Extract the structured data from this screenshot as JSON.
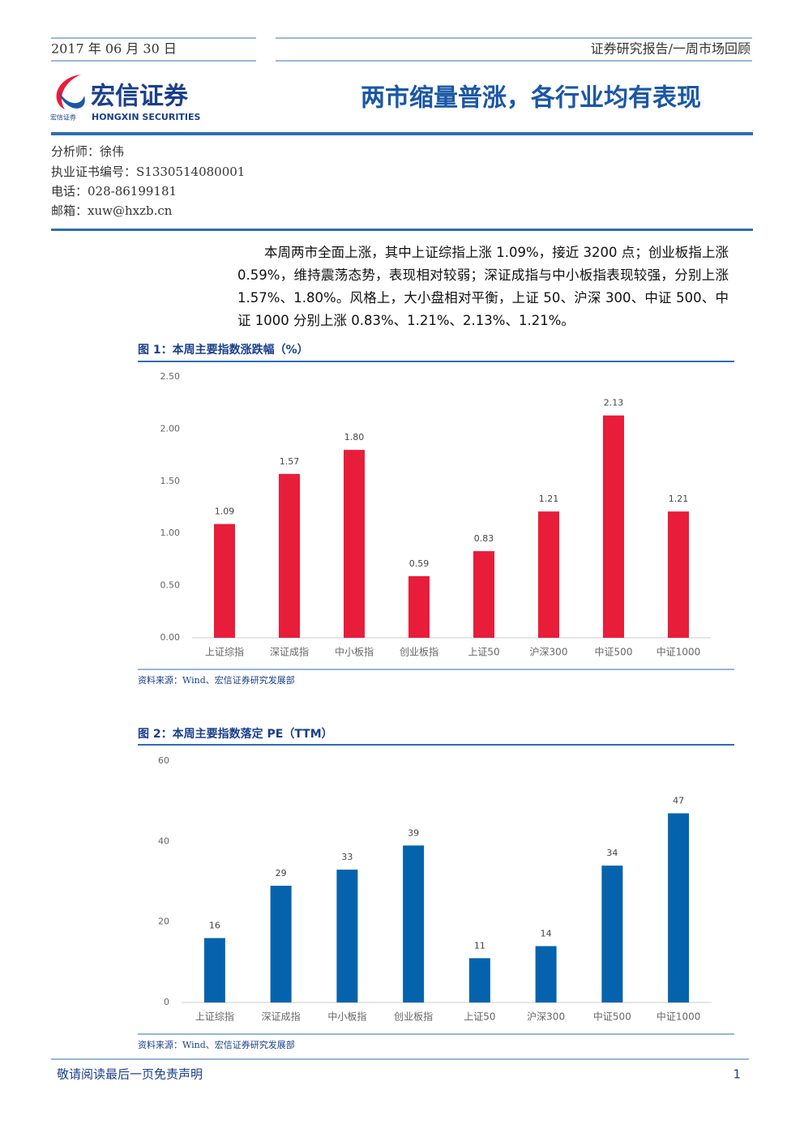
{
  "header": {
    "date": "2017 年 06 月 30 日",
    "category": "证券研究报告/一周市场回顾"
  },
  "logo": {
    "name": "宏信证券",
    "english": "HONGXIN SECURITIES",
    "small": "宏信证券"
  },
  "title": "两市缩量普涨，各行业均有表现",
  "analyst": [
    "分析师：徐伟",
    "执业证书编号：S1330514080001",
    "电话：028-86199181",
    "邮箱：xuw@hxzb.cn"
  ],
  "summary": "本周两市全面上涨，其中上证综指上涨 1.09%，接近 3200 点；创业板指上涨 0.59%，维持震荡态势，表现相对较弱；深证成指与中小板指表现较强，分别上涨 1.57%、1.80%。风格上，大小盘相对平衡，上证 50、沪深 300、中证 500、中证 1000 分别上涨 0.83%、1.21%、2.13%、1.21%。",
  "chart_data": [
    {
      "type": "bar",
      "title": "图 1：本周主要指数涨跌幅（%）",
      "source": "资料来源：Wind、宏信证券研究发展部",
      "categories": [
        "上证综指",
        "深证成指",
        "中小板指",
        "创业板指",
        "上证50",
        "沪深300",
        "中证500",
        "中证1000"
      ],
      "values": [
        1.09,
        1.57,
        1.8,
        0.59,
        0.83,
        1.21,
        2.13,
        1.21
      ],
      "value_labels": [
        "1.09",
        "1.57",
        "1.80",
        "0.59",
        "0.83",
        "1.21",
        "2.13",
        "1.21"
      ],
      "color": "#e81d3a",
      "ylim": [
        0,
        2.5
      ],
      "yticks": [
        {
          "value": 0,
          "label": "0.00"
        },
        {
          "value": 0.5,
          "label": "0.50"
        },
        {
          "value": 1,
          "label": "1.00"
        },
        {
          "value": 1.5,
          "label": "1.50"
        },
        {
          "value": 2,
          "label": "2.00"
        },
        {
          "value": 2.5,
          "label": "2.50"
        }
      ],
      "grid": false
    },
    {
      "type": "bar",
      "title": "图 2：本周主要指数落定 PE（TTM）",
      "source": "资料来源：Wind、宏信证券研究发展部",
      "categories": [
        "上证综指",
        "深证成指",
        "中小板指",
        "创业板指",
        "上证50",
        "沪深300",
        "中证500",
        "中证1000"
      ],
      "values": [
        16,
        29,
        33,
        39,
        11,
        14,
        34,
        47
      ],
      "color": "#0563ad",
      "ylim": [
        0,
        60
      ],
      "yticks": [
        0,
        20,
        40,
        60
      ],
      "grid": false
    }
  ],
  "footer": {
    "note": "敬请阅读最后一页免责声明",
    "page": "1"
  }
}
